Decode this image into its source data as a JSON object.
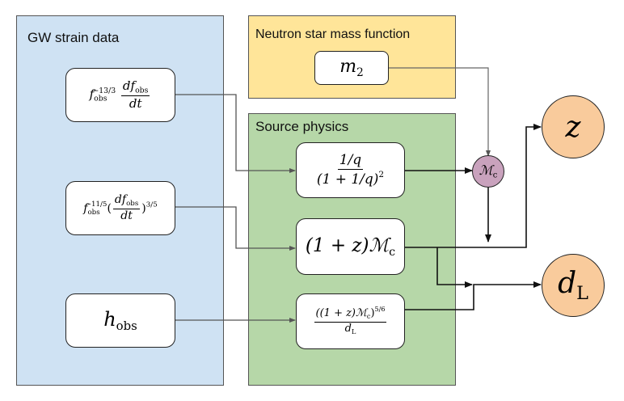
{
  "panels": {
    "gw_strain": {
      "label": "GW strain data",
      "color": "#cfe2f3"
    },
    "mass_function": {
      "label": "Neutron star mass function",
      "color": "#ffe599"
    },
    "source_physics": {
      "label": "Source physics",
      "color": "#b6d7a8"
    }
  },
  "nodes": {
    "m2": {
      "symbol": "m",
      "sub": "2"
    },
    "chirp_node": {
      "symbol": "ℳ",
      "sub": "c",
      "color": "#c9a2bd"
    },
    "z_out": {
      "symbol": "z",
      "color": "#f9cb9c"
    },
    "dl_out": {
      "symbol": "d",
      "sub": "L",
      "color": "#f9cb9c"
    }
  },
  "obs": {
    "f133": {
      "f": "f",
      "sub": "obs",
      "sup": "−13/3",
      "num": "df",
      "num_sub": "obs",
      "den": "dt"
    },
    "f115": {
      "f": "f",
      "sub": "obs",
      "sup": "−11/5",
      "open": "(",
      "num": "df",
      "num_sub": "obs",
      "den": "dt",
      "close": ")",
      "sup2": "3/5"
    },
    "hobs": {
      "h": "h",
      "sub": "obs"
    }
  },
  "physics": {
    "q": {
      "num": "1/q",
      "den": "(1 + 1/q)",
      "den_sup": "2"
    },
    "zmc": {
      "text": "(1 + z)",
      "mc": "ℳ",
      "mc_sub": "c"
    },
    "amp": {
      "num_open": "((1 + z)",
      "mc": "ℳ",
      "mc_sub": "c",
      "num_close": ")",
      "num_sup": "5/6",
      "den": "d",
      "den_sub": "L"
    }
  }
}
